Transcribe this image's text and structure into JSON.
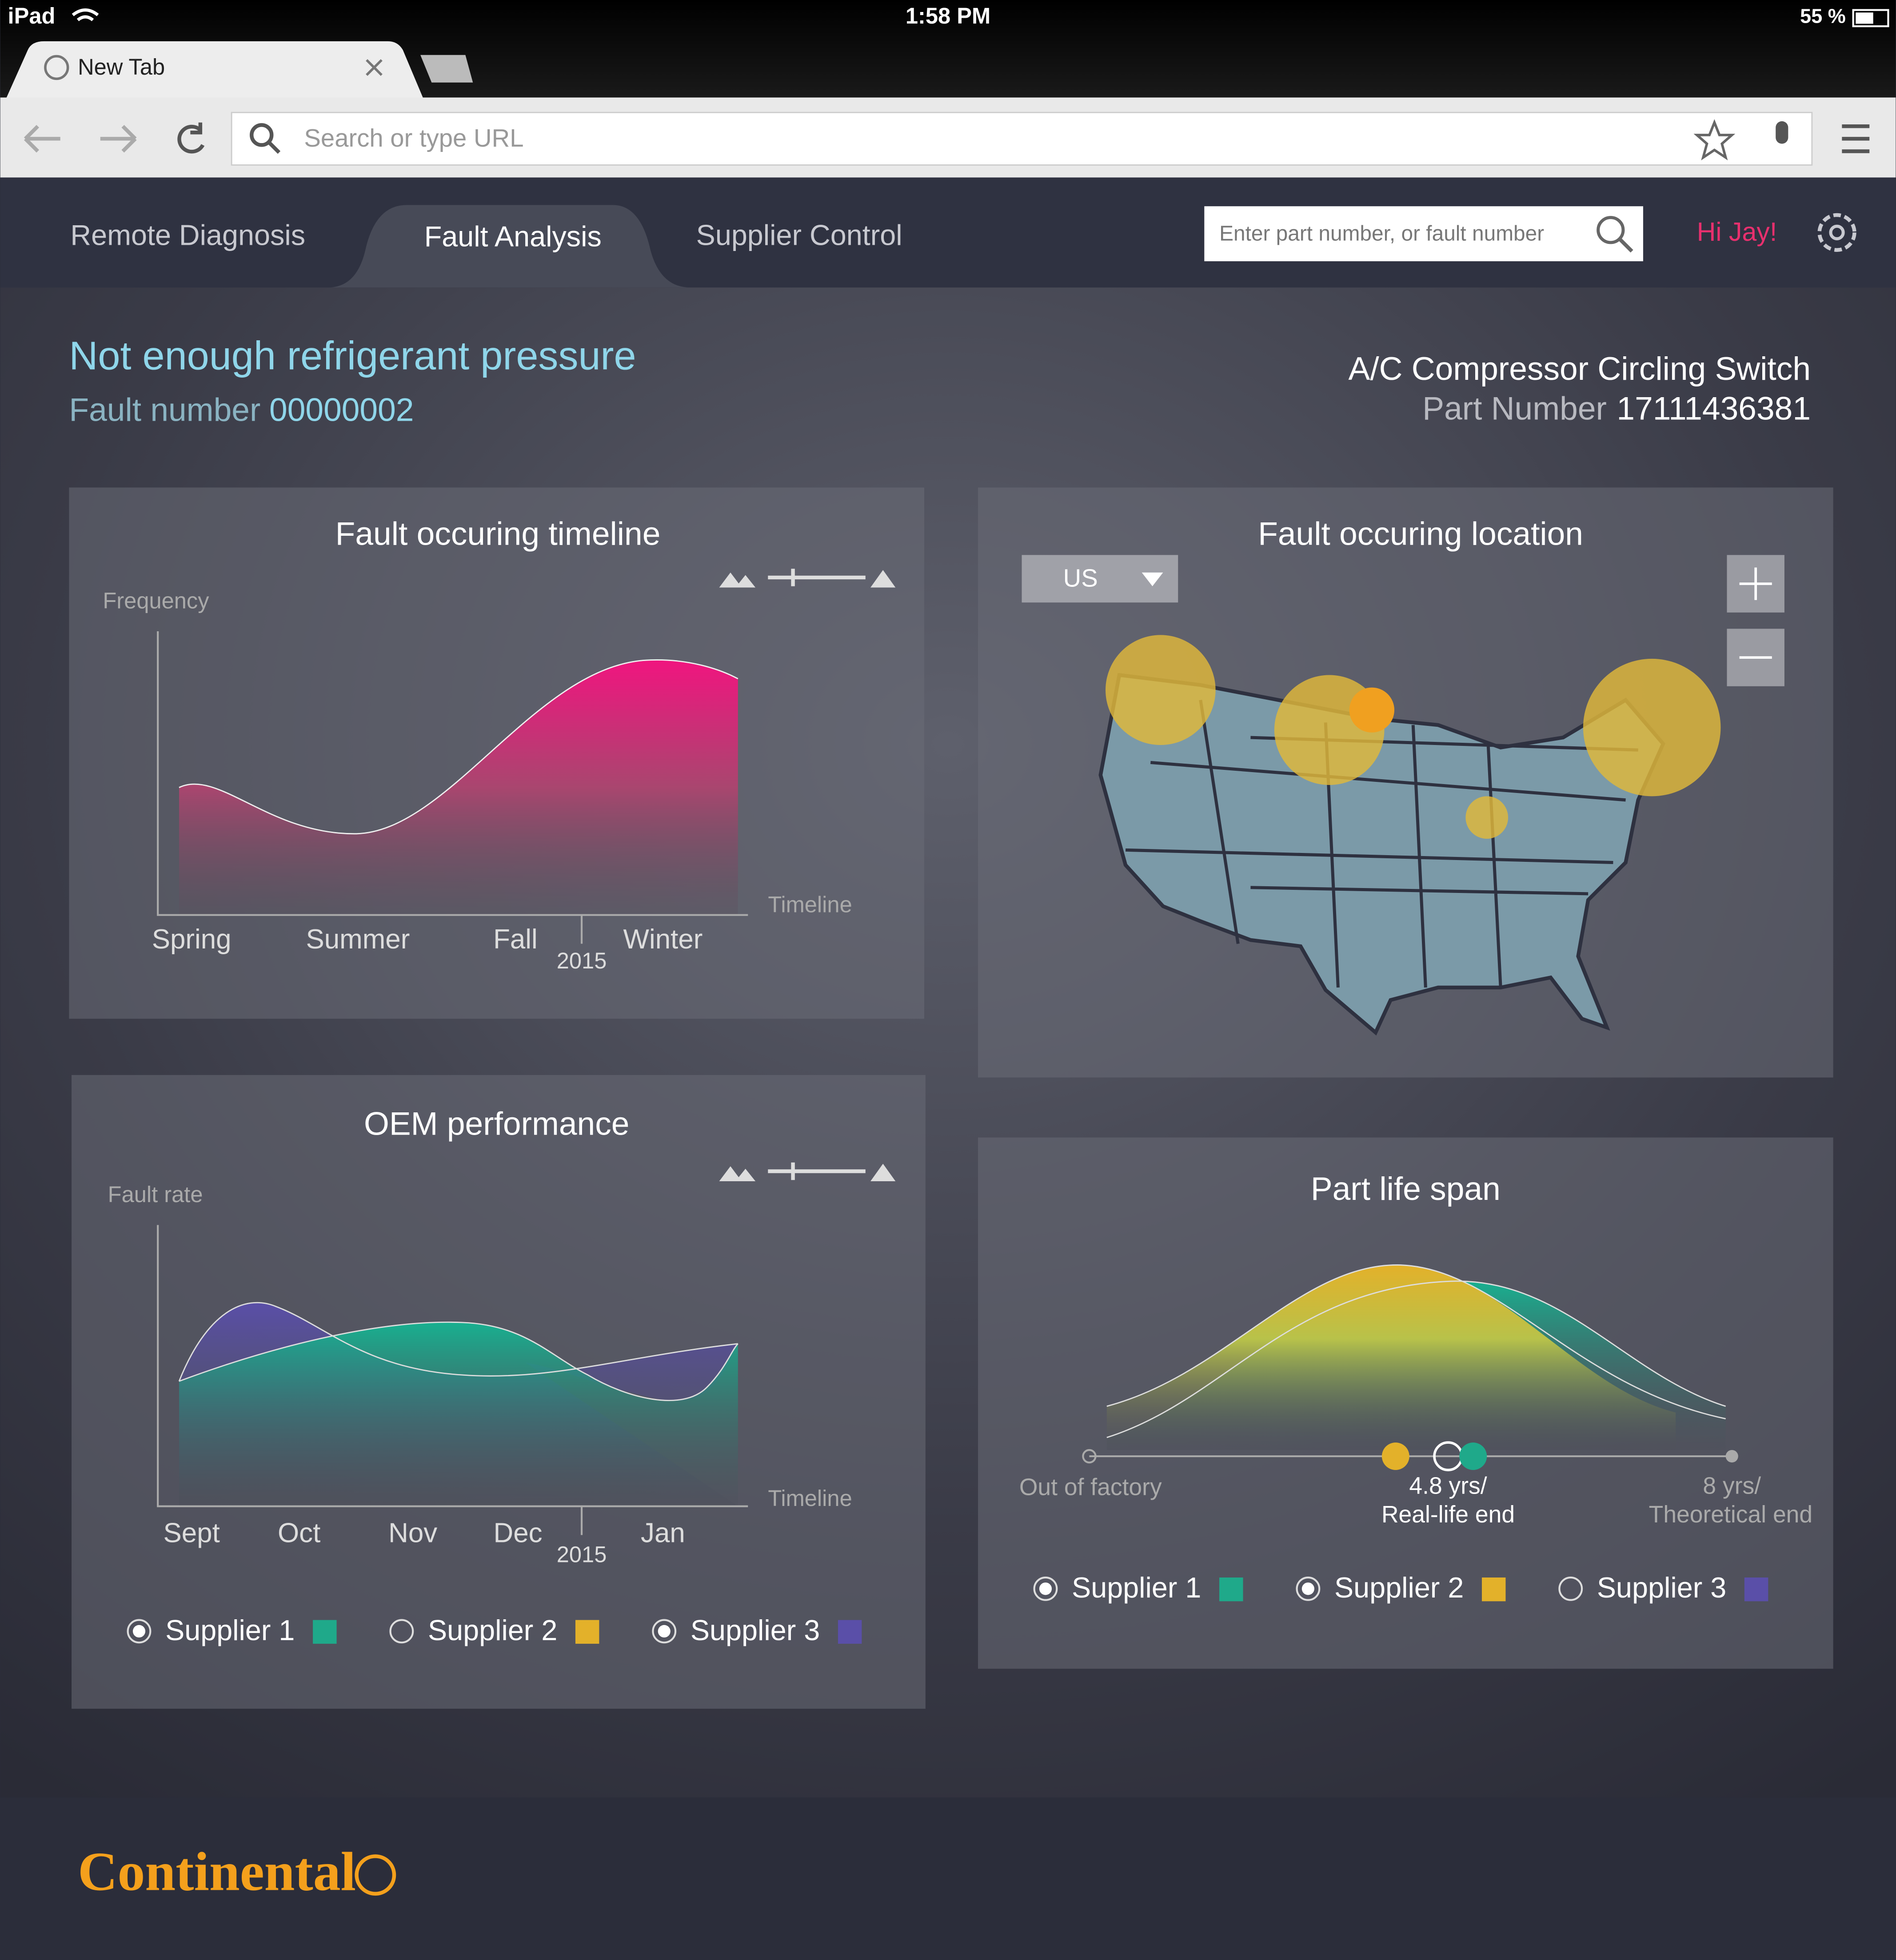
{
  "status_bar": {
    "device": "iPad",
    "time": "1:58 PM",
    "battery": "55 %"
  },
  "browser": {
    "tab": "New Tab",
    "url_placeholder": "Search or type URL"
  },
  "nav": {
    "tabs": [
      "Remote Diagnosis",
      "Fault Analysis",
      "Supplier Control"
    ],
    "search_placeholder": "Enter part number, or fault number",
    "greeting": "Hi Jay!"
  },
  "fault": {
    "title": "Not enough refrigerant pressure",
    "number_label": "Fault number",
    "number": "00000002"
  },
  "part": {
    "name": "A/C Compressor Circling Switch",
    "number_label": "Part Number",
    "number": "17111436381"
  },
  "timeline_panel": {
    "title": "Fault occuring timeline",
    "y_label": "Frequency",
    "x_label": "Timeline",
    "categories": [
      "Spring",
      "Summer",
      "Fall",
      "Winter"
    ],
    "year": "2015"
  },
  "location_panel": {
    "title": "Fault occuring location",
    "region": "US"
  },
  "oem_panel": {
    "title": "OEM performance",
    "y_label": "Fault rate",
    "x_label": "Timeline",
    "categories": [
      "Sept",
      "Oct",
      "Nov",
      "Dec",
      "Jan"
    ],
    "year": "2015",
    "legend": [
      {
        "name": "Supplier 1",
        "color": "#1fa98a",
        "selected": true
      },
      {
        "name": "Supplier 2",
        "color": "#e3b12a",
        "selected": false
      },
      {
        "name": "Supplier 3",
        "color": "#5a4fa8",
        "selected": true
      }
    ]
  },
  "lifespan_panel": {
    "title": "Part life span",
    "start_label": "Out of factory",
    "real_end": [
      "4.8 yrs/",
      "Real-life end"
    ],
    "theoretical_end": [
      "8 yrs/",
      "Theoretical end"
    ],
    "legend": [
      {
        "name": "Supplier 1",
        "color": "#1fa98a",
        "selected": true
      },
      {
        "name": "Supplier 2",
        "color": "#e3b12a",
        "selected": true
      },
      {
        "name": "Supplier 3",
        "color": "#5a4fa8",
        "selected": false
      }
    ]
  },
  "footer": {
    "brand": "Continental"
  }
}
